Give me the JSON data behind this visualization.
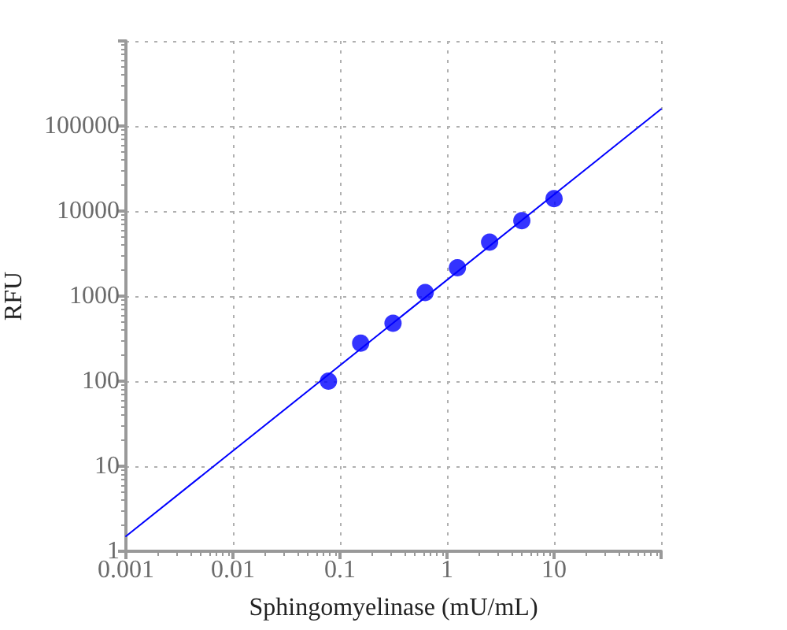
{
  "chart_data": {
    "type": "scatter",
    "xlabel": "Sphingomyelinase (mU/mL)",
    "ylabel": "RFU",
    "log": "xy",
    "grid": true,
    "xlim": [
      0.001,
      100
    ],
    "ylim": [
      1,
      1000000
    ],
    "xticks": [
      0.001,
      0.01,
      0.1,
      1,
      10,
      {
        "value": 100,
        "label": null
      }
    ],
    "yticks": [
      1,
      10,
      100,
      1000,
      10000,
      100000,
      {
        "value": 1000000,
        "label": null
      }
    ],
    "series": [
      {
        "x": [
          0.078,
          0.156,
          0.313,
          0.625,
          1.25,
          2.5,
          5,
          10
        ],
        "values": [
          100,
          280,
          480,
          1100,
          2150,
          4300,
          7700,
          14000
        ],
        "color": "#0000ff",
        "marker": "circle"
      },
      {
        "type": "line",
        "x": [
          0.001,
          100
        ],
        "values": [
          1.5,
          158000
        ],
        "color": "#0000ff",
        "marker": "none",
        "line_style": "solid"
      }
    ]
  }
}
